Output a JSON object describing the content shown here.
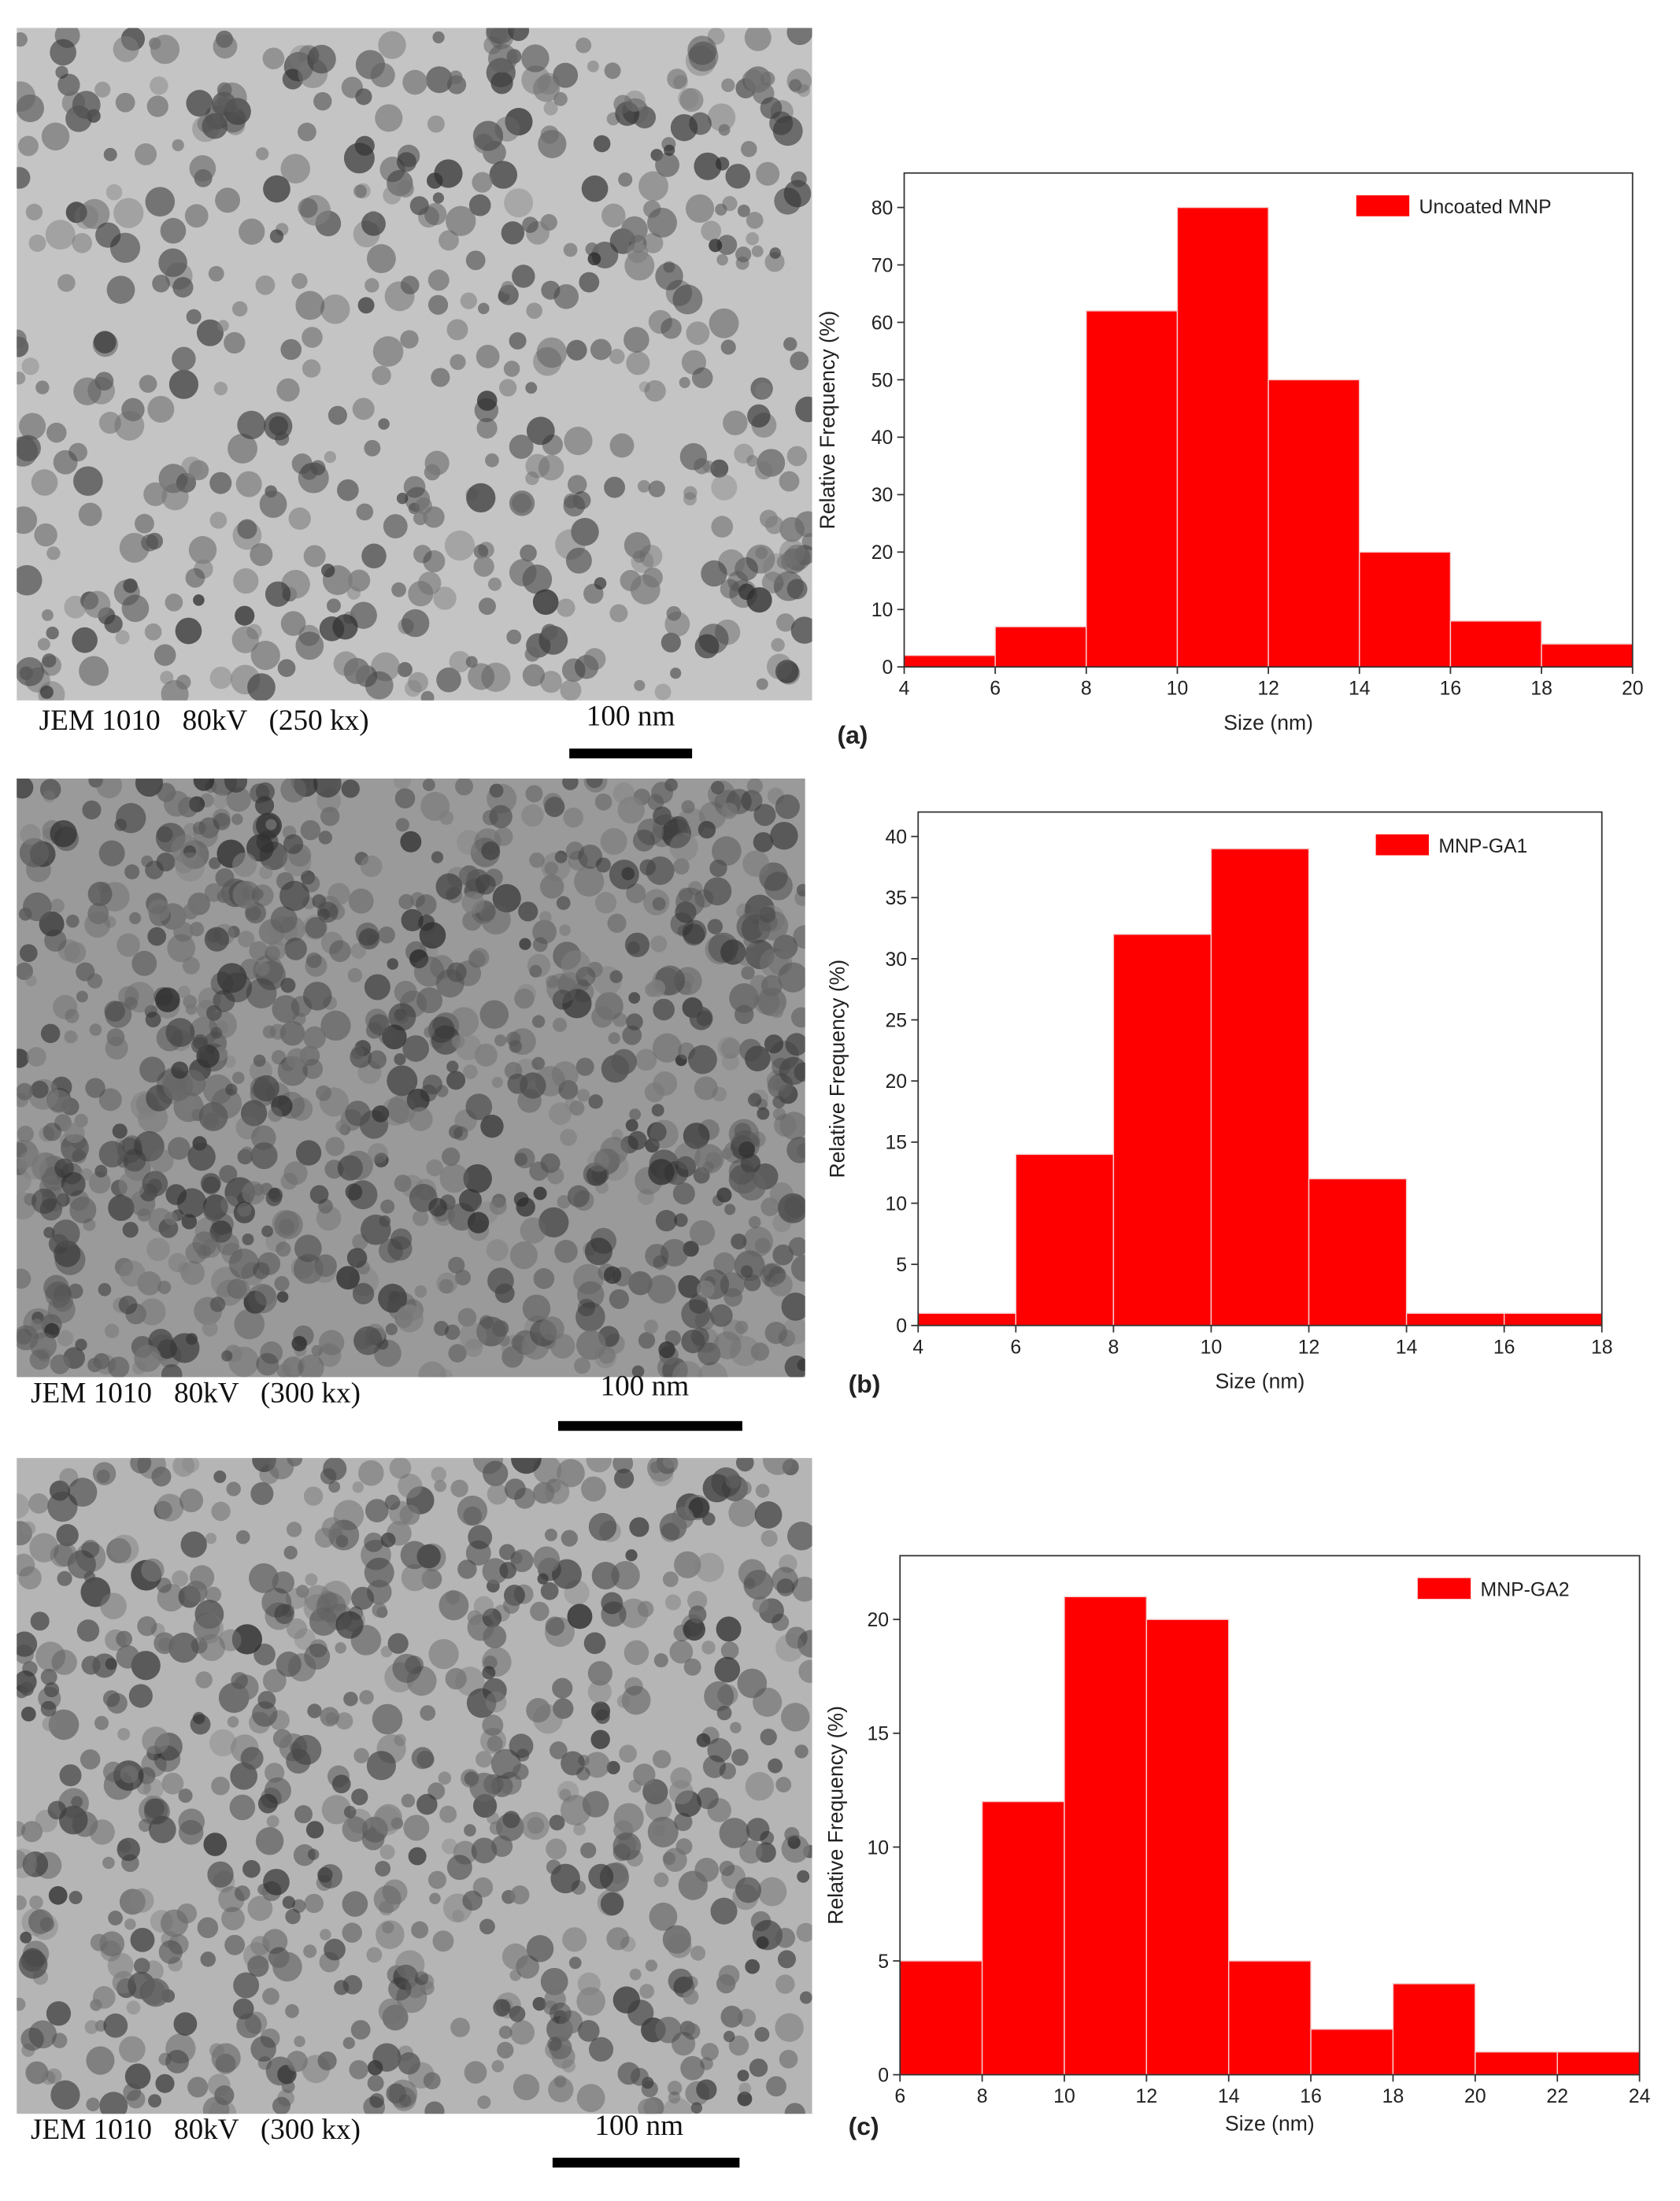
{
  "micrographs": [
    {
      "caption": "JEM 1010   80kV   (250 kx)",
      "scale_bar": "100 nm"
    },
    {
      "caption": "JEM 1010   80kV   (300 kx)",
      "scale_bar": "100 nm"
    },
    {
      "caption": "JEM 1010   80kV   (300 kx)",
      "scale_bar": "100 nm"
    }
  ],
  "chart_data": [
    {
      "type": "histogram",
      "label": "(a)",
      "x_label": "Size (nm)",
      "y_label": "Relative Frequency (%)",
      "bins": [
        4,
        6,
        8,
        10,
        12,
        14,
        16,
        18,
        20
      ],
      "series": [
        {
          "name": "Uncoated MNP",
          "color": "#ff0000",
          "values": [
            2,
            7,
            62,
            80,
            50,
            20,
            8,
            4
          ]
        }
      ],
      "xlim": [
        4,
        20
      ],
      "xticks": [
        4,
        6,
        8,
        10,
        12,
        14,
        16,
        18,
        20
      ],
      "ylim": [
        0,
        86
      ],
      "yticks": [
        0,
        10,
        20,
        30,
        40,
        50,
        60,
        70,
        80
      ],
      "legend": "upper right"
    },
    {
      "type": "histogram",
      "label": "(b)",
      "x_label": "Size (nm)",
      "y_label": "Relative Frequency (%)",
      "bins": [
        4,
        6,
        8,
        10,
        12,
        14,
        16,
        18
      ],
      "series": [
        {
          "name": "MNP-GA1",
          "color": "#ff0000",
          "values": [
            1,
            14,
            32,
            39,
            12,
            1,
            1
          ]
        }
      ],
      "xlim": [
        4,
        18
      ],
      "xticks": [
        4,
        6,
        8,
        10,
        12,
        14,
        16,
        18
      ],
      "ylim": [
        0,
        42
      ],
      "yticks": [
        0,
        5,
        10,
        15,
        20,
        25,
        30,
        35,
        40
      ],
      "legend": "upper right"
    },
    {
      "type": "histogram",
      "label": "(c)",
      "x_label": "Size (nm)",
      "y_label": "Relative Frequency (%)",
      "bins": [
        6,
        8,
        10,
        12,
        14,
        16,
        18,
        20,
        22,
        24
      ],
      "series": [
        {
          "name": "MNP-GA2",
          "color": "#ff0000",
          "values": [
            5,
            12,
            21,
            20,
            5,
            2,
            4,
            1,
            1
          ]
        }
      ],
      "xlim": [
        6,
        24
      ],
      "xticks": [
        6,
        8,
        10,
        12,
        14,
        16,
        18,
        20,
        22,
        24
      ],
      "ylim": [
        0,
        22.8
      ],
      "yticks": [
        0,
        5,
        10,
        15,
        20
      ],
      "legend": "upper right"
    }
  ]
}
